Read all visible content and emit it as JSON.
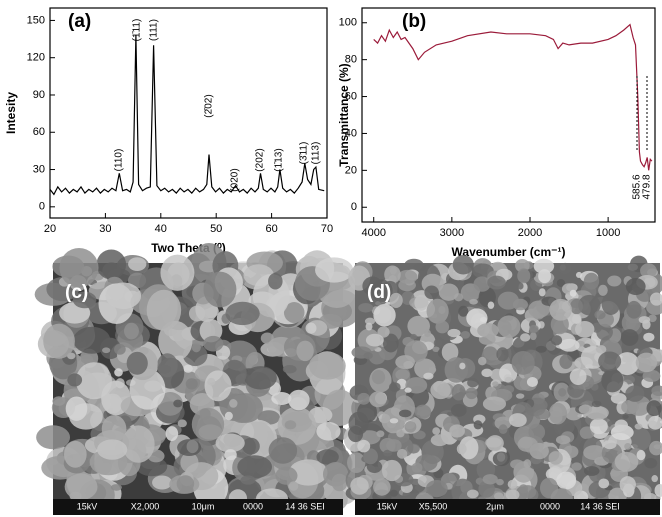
{
  "chart_data": [
    {
      "type": "line",
      "panel_label": "(a)",
      "x_label": "Two Theta (⁰)",
      "y_label": "Intesity",
      "xlim": [
        20,
        70
      ],
      "ylim": [
        -9,
        160
      ],
      "xticks": [
        20,
        30,
        40,
        50,
        60,
        70
      ],
      "yticks": [
        0,
        30,
        60,
        90,
        120,
        150
      ],
      "series": [
        {
          "color": "#000000",
          "x": [
            20,
            20.7,
            21.4,
            22.1,
            22.8,
            23.5,
            24.2,
            24.9,
            25.6,
            26.3,
            27,
            27.7,
            28.4,
            29.1,
            29.8,
            30.5,
            31.2,
            31.9,
            32.5,
            33.1,
            33.8,
            34.5,
            35,
            35.5,
            36,
            36.7,
            37.4,
            38.1,
            38.7,
            39.3,
            40,
            40.7,
            41.4,
            42.1,
            42.8,
            43.5,
            44.2,
            44.9,
            45.6,
            46.3,
            47,
            47.7,
            48.3,
            48.7,
            49.2,
            49.9,
            50.6,
            51.3,
            52,
            52.7,
            53.5,
            54.2,
            54.9,
            55.6,
            56.3,
            57,
            57.6,
            58,
            58.5,
            59.2,
            59.9,
            60.6,
            61.1,
            61.5,
            62,
            62.7,
            63.4,
            64.1,
            64.8,
            65.5,
            66,
            66.5,
            67.1,
            67.6,
            68,
            68.5,
            69.5
          ],
          "values": [
            14,
            10,
            16,
            12,
            15,
            11,
            14,
            12,
            16,
            11,
            14,
            12,
            15,
            11,
            14,
            12,
            15,
            13,
            27,
            13,
            14,
            12,
            20,
            138,
            18,
            13,
            15,
            16,
            130,
            17,
            13,
            15,
            12,
            14,
            11,
            15,
            12,
            14,
            11,
            15,
            12,
            14,
            18,
            42,
            16,
            12,
            15,
            11,
            14,
            12,
            17,
            12,
            14,
            11,
            15,
            12,
            15,
            27,
            14,
            12,
            15,
            12,
            16,
            30,
            15,
            12,
            14,
            11,
            15,
            20,
            35,
            22,
            18,
            30,
            32,
            14,
            13
          ]
        }
      ],
      "annotations": [
        "(110)",
        "(1̄11)",
        "(111)",
        "(2̄02)",
        "(020)",
        "(202)",
        "(1̄13)",
        "(3̄11)",
        "(113)"
      ]
    },
    {
      "type": "line",
      "panel_label": "(b)",
      "x_label": "Wavenumber (cm⁻¹)",
      "y_label": "Transmittance (%)",
      "xlim": [
        4150,
        400
      ],
      "ylim": [
        -8,
        108
      ],
      "xticks": [
        4000,
        3000,
        2000,
        1000
      ],
      "yticks": [
        0,
        20,
        40,
        60,
        80,
        100
      ],
      "series": [
        {
          "color": "#9b1b3a",
          "x": [
            4000,
            3950,
            3900,
            3850,
            3800,
            3750,
            3700,
            3650,
            3600,
            3500,
            3430,
            3350,
            3200,
            3000,
            2800,
            2500,
            2300,
            2000,
            1800,
            1700,
            1640,
            1580,
            1500,
            1350,
            1200,
            1000,
            900,
            800,
            720,
            680,
            650,
            620,
            600,
            585,
            560,
            540,
            520,
            500,
            480,
            460,
            440
          ],
          "values": [
            91,
            89,
            93,
            90,
            96,
            92,
            95,
            91,
            92,
            86,
            80,
            84,
            88,
            90,
            93,
            95,
            94,
            94,
            93,
            91,
            86,
            89,
            88,
            89,
            89,
            91,
            93,
            96,
            99,
            92,
            88,
            60,
            30,
            25,
            23,
            22,
            24,
            27,
            20,
            26,
            25
          ]
        }
      ],
      "annotations": [
        "585.6",
        "479.8"
      ]
    }
  ],
  "images": [
    {
      "label": "(c)",
      "info": [
        "15kV",
        "X2,000",
        "10μm",
        "0000",
        "14 36 SEI"
      ]
    },
    {
      "label": "(d)",
      "info": [
        "15kV",
        "X5,500",
        "2μm",
        "0000",
        "14 36 SEI"
      ]
    }
  ]
}
